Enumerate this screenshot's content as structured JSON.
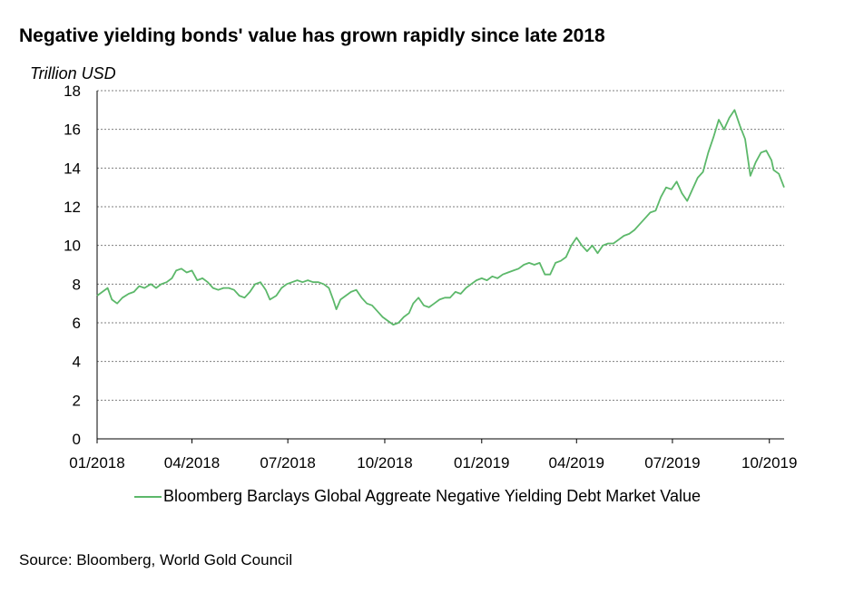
{
  "title": "Negative yielding bonds' value has grown rapidly since late 2018",
  "unit_label": "Trillion USD",
  "source": "Source: Bloomberg, World Gold Council",
  "colors": {
    "series": "#5cb86a",
    "grid": "#7f7f7f",
    "axis": "#000000"
  },
  "chart_data": {
    "type": "line",
    "title": "Negative yielding bonds' value has grown rapidly since late 2018",
    "ylabel": "Trillion USD",
    "xlabel": "",
    "ylim": [
      0,
      18
    ],
    "yticks": [
      0,
      2,
      4,
      6,
      8,
      10,
      12,
      14,
      16,
      18
    ],
    "xlim": [
      "2018-01-01",
      "2019-10-15"
    ],
    "xticks": [
      {
        "date": "2018-01-01",
        "label": "01/2018"
      },
      {
        "date": "2018-04-01",
        "label": "04/2018"
      },
      {
        "date": "2018-07-01",
        "label": "07/2018"
      },
      {
        "date": "2018-10-01",
        "label": "10/2018"
      },
      {
        "date": "2019-01-01",
        "label": "01/2019"
      },
      {
        "date": "2019-04-01",
        "label": "04/2019"
      },
      {
        "date": "2019-07-01",
        "label": "07/2019"
      },
      {
        "date": "2019-10-01",
        "label": "10/2019"
      }
    ],
    "grid": "horizontal-dashed",
    "legend": "bottom",
    "series": [
      {
        "name": "Bloomberg Barclays Global Aggreate Negative Yielding Debt Market Value",
        "points": [
          [
            "2018-01-01",
            7.4
          ],
          [
            "2018-01-06",
            7.6
          ],
          [
            "2018-01-11",
            7.8
          ],
          [
            "2018-01-15",
            7.2
          ],
          [
            "2018-01-20",
            7.0
          ],
          [
            "2018-01-25",
            7.3
          ],
          [
            "2018-01-31",
            7.5
          ],
          [
            "2018-02-05",
            7.6
          ],
          [
            "2018-02-10",
            7.9
          ],
          [
            "2018-02-15",
            7.8
          ],
          [
            "2018-02-21",
            8.0
          ],
          [
            "2018-02-26",
            7.8
          ],
          [
            "2018-03-03",
            8.0
          ],
          [
            "2018-03-08",
            8.1
          ],
          [
            "2018-03-13",
            8.3
          ],
          [
            "2018-03-17",
            8.7
          ],
          [
            "2018-03-22",
            8.8
          ],
          [
            "2018-03-27",
            8.6
          ],
          [
            "2018-04-01",
            8.7
          ],
          [
            "2018-04-06",
            8.2
          ],
          [
            "2018-04-11",
            8.3
          ],
          [
            "2018-04-16",
            8.1
          ],
          [
            "2018-04-21",
            7.8
          ],
          [
            "2018-04-26",
            7.7
          ],
          [
            "2018-05-01",
            7.8
          ],
          [
            "2018-05-06",
            7.8
          ],
          [
            "2018-05-11",
            7.7
          ],
          [
            "2018-05-16",
            7.4
          ],
          [
            "2018-05-21",
            7.3
          ],
          [
            "2018-05-26",
            7.6
          ],
          [
            "2018-05-31",
            8.0
          ],
          [
            "2018-06-05",
            8.1
          ],
          [
            "2018-06-10",
            7.7
          ],
          [
            "2018-06-14",
            7.2
          ],
          [
            "2018-06-20",
            7.4
          ],
          [
            "2018-06-25",
            7.8
          ],
          [
            "2018-06-30",
            8.0
          ],
          [
            "2018-07-05",
            8.1
          ],
          [
            "2018-07-10",
            8.2
          ],
          [
            "2018-07-15",
            8.1
          ],
          [
            "2018-07-20",
            8.2
          ],
          [
            "2018-07-25",
            8.1
          ],
          [
            "2018-07-30",
            8.1
          ],
          [
            "2018-08-04",
            8.0
          ],
          [
            "2018-08-09",
            7.8
          ],
          [
            "2018-08-13",
            7.2
          ],
          [
            "2018-08-16",
            6.7
          ],
          [
            "2018-08-20",
            7.2
          ],
          [
            "2018-08-25",
            7.4
          ],
          [
            "2018-08-30",
            7.6
          ],
          [
            "2018-09-04",
            7.7
          ],
          [
            "2018-09-09",
            7.3
          ],
          [
            "2018-09-14",
            7.0
          ],
          [
            "2018-09-19",
            6.9
          ],
          [
            "2018-09-24",
            6.6
          ],
          [
            "2018-09-29",
            6.3
          ],
          [
            "2018-10-04",
            6.1
          ],
          [
            "2018-10-09",
            5.9
          ],
          [
            "2018-10-14",
            6.0
          ],
          [
            "2018-10-19",
            6.3
          ],
          [
            "2018-10-24",
            6.5
          ],
          [
            "2018-10-28",
            7.0
          ],
          [
            "2018-11-02",
            7.3
          ],
          [
            "2018-11-07",
            6.9
          ],
          [
            "2018-11-12",
            6.8
          ],
          [
            "2018-11-17",
            7.0
          ],
          [
            "2018-11-22",
            7.2
          ],
          [
            "2018-11-27",
            7.3
          ],
          [
            "2018-12-02",
            7.3
          ],
          [
            "2018-12-07",
            7.6
          ],
          [
            "2018-12-12",
            7.5
          ],
          [
            "2018-12-17",
            7.8
          ],
          [
            "2018-12-22",
            8.0
          ],
          [
            "2018-12-27",
            8.2
          ],
          [
            "2019-01-01",
            8.3
          ],
          [
            "2019-01-06",
            8.2
          ],
          [
            "2019-01-11",
            8.4
          ],
          [
            "2019-01-16",
            8.3
          ],
          [
            "2019-01-21",
            8.5
          ],
          [
            "2019-01-26",
            8.6
          ],
          [
            "2019-01-31",
            8.7
          ],
          [
            "2019-02-05",
            8.8
          ],
          [
            "2019-02-10",
            9.0
          ],
          [
            "2019-02-15",
            9.1
          ],
          [
            "2019-02-20",
            9.0
          ],
          [
            "2019-02-25",
            9.1
          ],
          [
            "2019-03-02",
            8.5
          ],
          [
            "2019-03-07",
            8.5
          ],
          [
            "2019-03-12",
            9.1
          ],
          [
            "2019-03-17",
            9.2
          ],
          [
            "2019-03-22",
            9.4
          ],
          [
            "2019-03-27",
            10.0
          ],
          [
            "2019-04-01",
            10.4
          ],
          [
            "2019-04-06",
            10.0
          ],
          [
            "2019-04-11",
            9.7
          ],
          [
            "2019-04-16",
            10.0
          ],
          [
            "2019-04-21",
            9.6
          ],
          [
            "2019-04-26",
            10.0
          ],
          [
            "2019-05-01",
            10.1
          ],
          [
            "2019-05-06",
            10.1
          ],
          [
            "2019-05-11",
            10.3
          ],
          [
            "2019-05-16",
            10.5
          ],
          [
            "2019-05-21",
            10.6
          ],
          [
            "2019-05-26",
            10.8
          ],
          [
            "2019-05-31",
            11.1
          ],
          [
            "2019-06-05",
            11.4
          ],
          [
            "2019-06-10",
            11.7
          ],
          [
            "2019-06-15",
            11.8
          ],
          [
            "2019-06-20",
            12.5
          ],
          [
            "2019-06-25",
            13.0
          ],
          [
            "2019-06-30",
            12.9
          ],
          [
            "2019-07-05",
            13.3
          ],
          [
            "2019-07-10",
            12.7
          ],
          [
            "2019-07-15",
            12.3
          ],
          [
            "2019-07-20",
            12.9
          ],
          [
            "2019-07-25",
            13.5
          ],
          [
            "2019-07-30",
            13.8
          ],
          [
            "2019-08-04",
            14.8
          ],
          [
            "2019-08-09",
            15.6
          ],
          [
            "2019-08-14",
            16.5
          ],
          [
            "2019-08-19",
            16.0
          ],
          [
            "2019-08-24",
            16.6
          ],
          [
            "2019-08-29",
            17.0
          ],
          [
            "2019-09-03",
            16.2
          ],
          [
            "2019-09-08",
            15.5
          ],
          [
            "2019-09-13",
            13.6
          ],
          [
            "2019-09-18",
            14.3
          ],
          [
            "2019-09-23",
            14.8
          ],
          [
            "2019-09-28",
            14.9
          ],
          [
            "2019-10-03",
            14.4
          ],
          [
            "2019-10-05",
            13.9
          ],
          [
            "2019-10-10",
            13.7
          ],
          [
            "2019-10-15",
            13.0
          ]
        ]
      }
    ]
  }
}
